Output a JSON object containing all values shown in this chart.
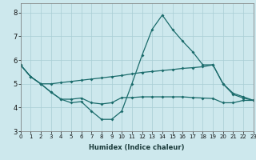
{
  "xlabel": "Humidex (Indice chaleur)",
  "xlim": [
    0,
    23
  ],
  "ylim": [
    3,
    8.4
  ],
  "yticks": [
    3,
    4,
    5,
    6,
    7,
    8
  ],
  "xticks": [
    0,
    1,
    2,
    3,
    4,
    5,
    6,
    7,
    8,
    9,
    10,
    11,
    12,
    13,
    14,
    15,
    16,
    17,
    18,
    19,
    20,
    21,
    22,
    23
  ],
  "bg_color": "#cde8ed",
  "grid_color": "#a8cdd4",
  "line_color": "#1a6b6b",
  "line1_y": [
    5.8,
    5.3,
    5.0,
    5.0,
    5.05,
    5.1,
    5.15,
    5.2,
    5.25,
    5.3,
    5.35,
    5.42,
    5.48,
    5.52,
    5.56,
    5.6,
    5.65,
    5.68,
    5.72,
    5.8,
    5.0,
    4.6,
    4.45,
    4.3
  ],
  "line2_y": [
    5.8,
    5.3,
    5.0,
    4.65,
    4.35,
    4.2,
    4.25,
    3.85,
    3.5,
    3.5,
    3.85,
    5.0,
    6.2,
    7.3,
    7.9,
    7.3,
    6.8,
    6.35,
    5.8,
    5.8,
    5.0,
    4.55,
    4.4,
    4.3
  ],
  "line3_y": [
    5.8,
    5.3,
    5.0,
    4.65,
    4.35,
    4.35,
    4.4,
    4.2,
    4.15,
    4.2,
    4.42,
    4.42,
    4.45,
    4.45,
    4.45,
    4.45,
    4.45,
    4.42,
    4.4,
    4.38,
    4.2,
    4.2,
    4.3,
    4.3
  ],
  "marker_style": "D",
  "marker_size": 2.0,
  "line_width": 0.9,
  "tick_fontsize_x": 5,
  "tick_fontsize_y": 6,
  "xlabel_fontsize": 6
}
